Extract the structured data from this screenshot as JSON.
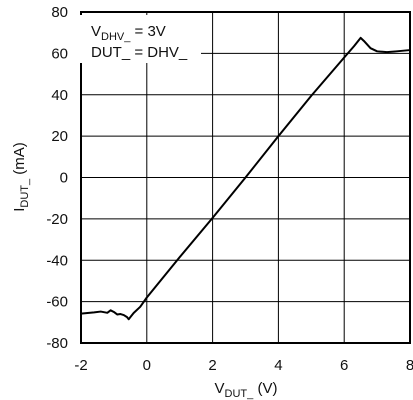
{
  "chart_data": {
    "type": "line",
    "title": "",
    "xlabel": {
      "main": "V",
      "sub": "DUT_",
      "unit": " (V)"
    },
    "ylabel": {
      "main": "I",
      "sub": "DUT_",
      "unit": " (mA)"
    },
    "xlim": [
      -2,
      8
    ],
    "ylim": [
      -80,
      80
    ],
    "x_ticks": [
      -2,
      0,
      2,
      4,
      6,
      8
    ],
    "x_tick_labels": [
      "-2",
      "0",
      "2",
      "4",
      "6",
      "8"
    ],
    "y_ticks": [
      80,
      60,
      40,
      20,
      0,
      -20,
      -40,
      -60,
      -80
    ],
    "y_tick_labels": [
      "80",
      "60",
      "40",
      "20",
      "0",
      "-20",
      "-40",
      "-60",
      "-80"
    ],
    "grid": true,
    "annotations": [
      {
        "main": "V",
        "sub": "DHV_",
        "rest": " = 3V"
      },
      {
        "main": "DUT_ = DHV_",
        "sub": "",
        "rest": ""
      }
    ],
    "series": [
      {
        "color": "#000000",
        "points": [
          [
            -2.0,
            -65.8
          ],
          [
            -1.8,
            -65.5
          ],
          [
            -1.6,
            -65.2
          ],
          [
            -1.4,
            -64.8
          ],
          [
            -1.2,
            -65.4
          ],
          [
            -1.1,
            -64.2
          ],
          [
            -1.0,
            -65.0
          ],
          [
            -0.9,
            -66.2
          ],
          [
            -0.8,
            -66.0
          ],
          [
            -0.7,
            -66.5
          ],
          [
            -0.6,
            -67.5
          ],
          [
            -0.55,
            -68.5
          ],
          [
            -0.5,
            -67.5
          ],
          [
            -0.4,
            -65.5
          ],
          [
            -0.2,
            -62.5
          ],
          [
            0.0,
            -58.0
          ],
          [
            1.0,
            -38.5
          ],
          [
            2.0,
            -19.5
          ],
          [
            3.0,
            0.0
          ],
          [
            4.0,
            20.0
          ],
          [
            5.0,
            39.5
          ],
          [
            6.0,
            58.0
          ],
          [
            6.3,
            63.5
          ],
          [
            6.5,
            67.5
          ],
          [
            6.6,
            66.0
          ],
          [
            6.8,
            62.5
          ],
          [
            7.0,
            61.0
          ],
          [
            7.3,
            60.6
          ],
          [
            7.6,
            61.0
          ],
          [
            7.8,
            61.3
          ],
          [
            8.0,
            61.6
          ]
        ]
      }
    ]
  }
}
